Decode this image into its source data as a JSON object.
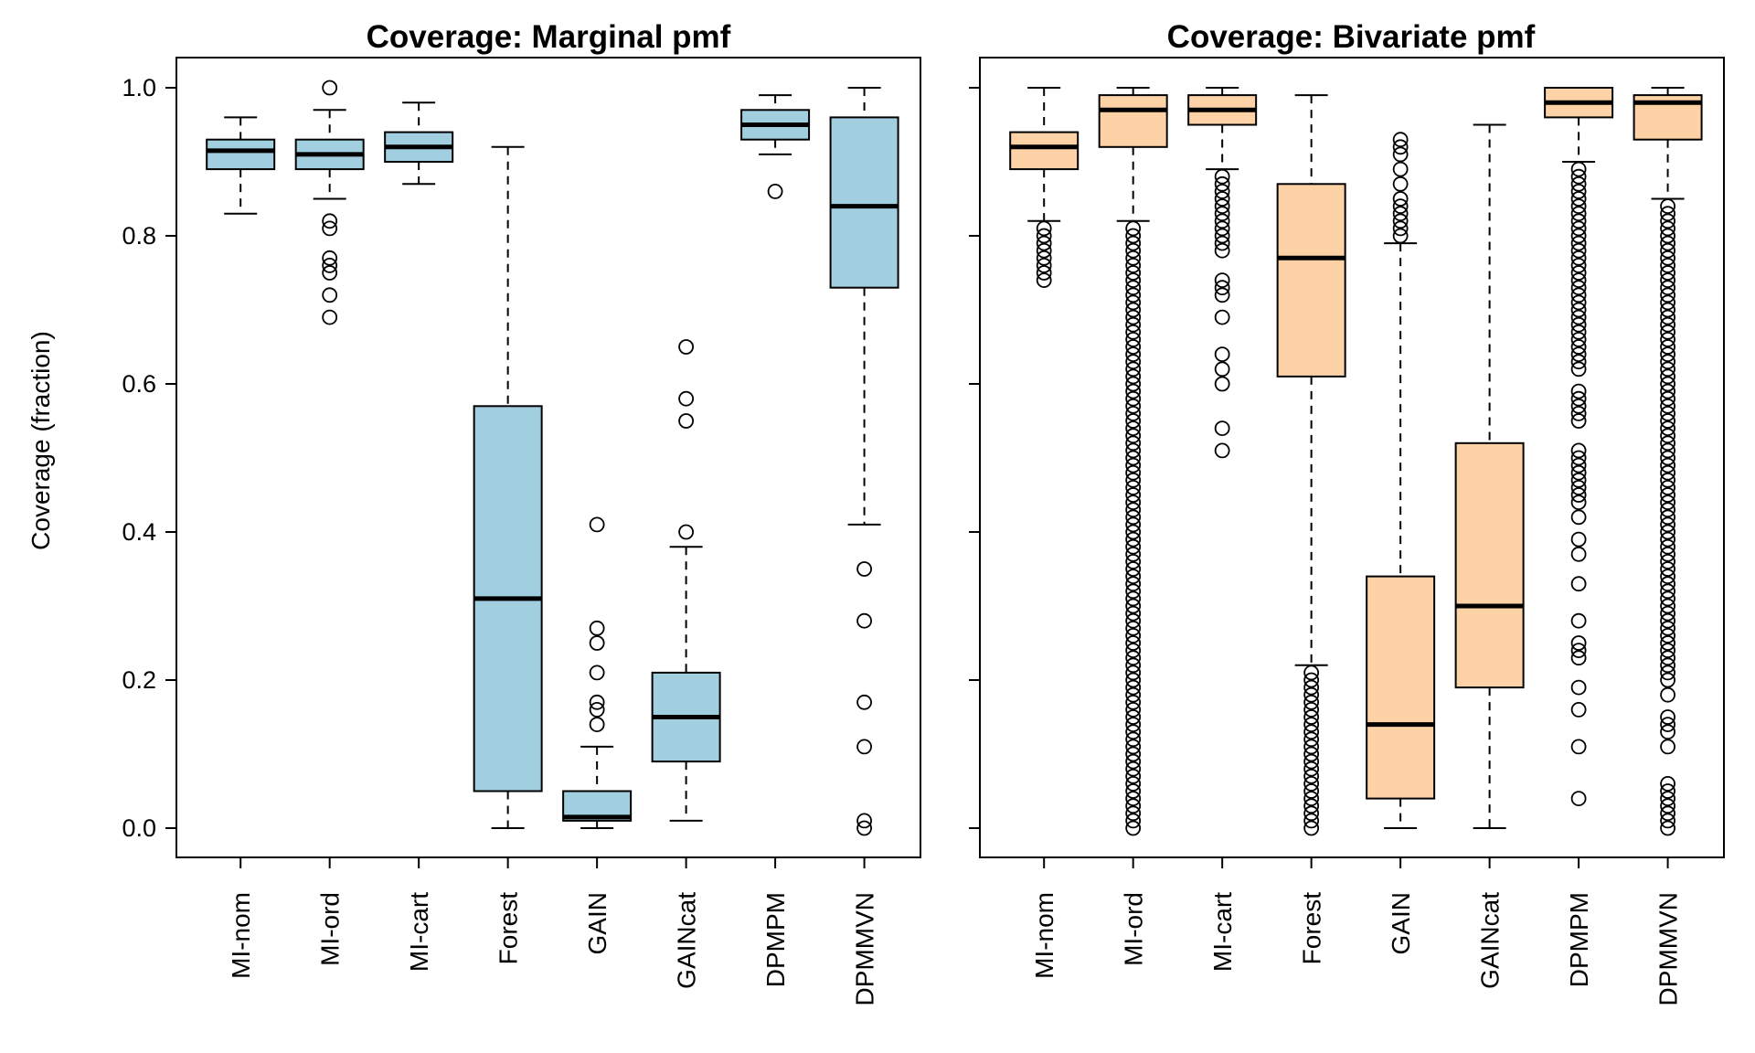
{
  "chart_data": [
    {
      "type": "box",
      "title": "Coverage: Marginal pmf",
      "ylabel": "Coverage (fraction)",
      "ylim": [
        0,
        1
      ],
      "yticks": [
        "0.0",
        "0.2",
        "0.4",
        "0.6",
        "0.8",
        "1.0"
      ],
      "show_ytick_labels": true,
      "fill": "#a1cfdf",
      "categories": [
        "MI-nom",
        "MI-ord",
        "MI-cart",
        "Forest",
        "GAIN",
        "GAINcat",
        "DPMPM",
        "DPMMVN"
      ],
      "boxes": [
        {
          "low": 0.83,
          "q1": 0.89,
          "median": 0.915,
          "q3": 0.93,
          "high": 0.96,
          "outliers": []
        },
        {
          "low": 0.85,
          "q1": 0.89,
          "median": 0.91,
          "q3": 0.93,
          "high": 0.97,
          "outliers": [
            1.0,
            0.82,
            0.81,
            0.77,
            0.76,
            0.75,
            0.72,
            0.69
          ]
        },
        {
          "low": 0.87,
          "q1": 0.9,
          "median": 0.92,
          "q3": 0.94,
          "high": 0.98,
          "outliers": []
        },
        {
          "low": 0.0,
          "q1": 0.05,
          "median": 0.31,
          "q3": 0.57,
          "high": 0.92,
          "outliers": []
        },
        {
          "low": 0.0,
          "q1": 0.01,
          "median": 0.015,
          "q3": 0.05,
          "high": 0.11,
          "outliers": [
            0.41,
            0.27,
            0.25,
            0.21,
            0.17,
            0.16,
            0.14
          ]
        },
        {
          "low": 0.01,
          "q1": 0.09,
          "median": 0.15,
          "q3": 0.21,
          "high": 0.38,
          "outliers": [
            0.65,
            0.58,
            0.55,
            0.4
          ]
        },
        {
          "low": 0.91,
          "q1": 0.93,
          "median": 0.95,
          "q3": 0.97,
          "high": 0.99,
          "outliers": [
            0.86
          ]
        },
        {
          "low": 0.41,
          "q1": 0.73,
          "median": 0.84,
          "q3": 0.96,
          "high": 1.0,
          "outliers": [
            0.35,
            0.28,
            0.17,
            0.11,
            0.01,
            0.0
          ]
        }
      ]
    },
    {
      "type": "box",
      "title": "Coverage: Bivariate pmf",
      "ylabel": "",
      "ylim": [
        0,
        1
      ],
      "yticks": [
        "0.0",
        "0.2",
        "0.4",
        "0.6",
        "0.8",
        "1.0"
      ],
      "show_ytick_labels": false,
      "fill": "#fcd2a6",
      "categories": [
        "MI-nom",
        "MI-ord",
        "MI-cart",
        "Forest",
        "GAIN",
        "GAINcat",
        "DPMPM",
        "DPMMVN"
      ],
      "boxes": [
        {
          "low": 0.82,
          "q1": 0.89,
          "median": 0.92,
          "q3": 0.94,
          "high": 1.0,
          "outliers": [
            0.81,
            0.8,
            0.79,
            0.78,
            0.77,
            0.76,
            0.75,
            0.74
          ]
        },
        {
          "low": 0.82,
          "q1": 0.92,
          "median": 0.97,
          "q3": 0.99,
          "high": 1.0,
          "outliers": [
            0.81,
            0.8,
            0.79,
            0.78,
            0.77,
            0.76,
            0.75,
            0.74,
            0.73,
            0.72,
            0.71,
            0.7,
            0.69,
            0.68,
            0.67,
            0.66,
            0.65,
            0.64,
            0.63,
            0.62,
            0.61,
            0.6,
            0.59,
            0.58,
            0.57,
            0.56,
            0.55,
            0.54,
            0.53,
            0.52,
            0.51,
            0.5,
            0.49,
            0.48,
            0.47,
            0.46,
            0.45,
            0.44,
            0.43,
            0.42,
            0.41,
            0.4,
            0.39,
            0.38,
            0.37,
            0.36,
            0.35,
            0.34,
            0.33,
            0.32,
            0.31,
            0.3,
            0.29,
            0.28,
            0.27,
            0.26,
            0.25,
            0.24,
            0.23,
            0.22,
            0.21,
            0.2,
            0.19,
            0.18,
            0.17,
            0.16,
            0.15,
            0.14,
            0.13,
            0.12,
            0.11,
            0.1,
            0.09,
            0.08,
            0.07,
            0.06,
            0.05,
            0.04,
            0.03,
            0.02,
            0.01,
            0.0
          ]
        },
        {
          "low": 0.89,
          "q1": 0.95,
          "median": 0.97,
          "q3": 0.99,
          "high": 1.0,
          "outliers": [
            0.88,
            0.87,
            0.86,
            0.85,
            0.84,
            0.83,
            0.82,
            0.81,
            0.8,
            0.79,
            0.78,
            0.74,
            0.73,
            0.72,
            0.69,
            0.64,
            0.62,
            0.6,
            0.54,
            0.51
          ]
        },
        {
          "low": 0.22,
          "q1": 0.61,
          "median": 0.77,
          "q3": 0.87,
          "high": 0.99,
          "outliers": [
            0.21,
            0.2,
            0.19,
            0.18,
            0.17,
            0.16,
            0.15,
            0.14,
            0.13,
            0.12,
            0.11,
            0.1,
            0.09,
            0.08,
            0.07,
            0.06,
            0.05,
            0.04,
            0.03,
            0.02,
            0.01,
            0.0
          ]
        },
        {
          "low": 0.0,
          "q1": 0.04,
          "median": 0.14,
          "q3": 0.34,
          "high": 0.79,
          "outliers": [
            0.93,
            0.92,
            0.91,
            0.89,
            0.87,
            0.85,
            0.84,
            0.83,
            0.82,
            0.81,
            0.8
          ]
        },
        {
          "low": 0.0,
          "q1": 0.19,
          "median": 0.3,
          "q3": 0.52,
          "high": 0.95,
          "outliers": []
        },
        {
          "low": 0.9,
          "q1": 0.96,
          "median": 0.98,
          "q3": 1.0,
          "high": 1.0,
          "outliers": [
            0.89,
            0.88,
            0.87,
            0.86,
            0.85,
            0.84,
            0.83,
            0.82,
            0.81,
            0.8,
            0.79,
            0.78,
            0.77,
            0.76,
            0.75,
            0.74,
            0.73,
            0.72,
            0.71,
            0.7,
            0.69,
            0.68,
            0.67,
            0.66,
            0.65,
            0.64,
            0.63,
            0.62,
            0.59,
            0.58,
            0.57,
            0.56,
            0.55,
            0.51,
            0.5,
            0.49,
            0.48,
            0.47,
            0.46,
            0.45,
            0.44,
            0.42,
            0.39,
            0.37,
            0.33,
            0.28,
            0.25,
            0.24,
            0.23,
            0.19,
            0.16,
            0.11,
            0.04
          ]
        },
        {
          "low": 0.85,
          "q1": 0.93,
          "median": 0.98,
          "q3": 0.99,
          "high": 1.0,
          "outliers": [
            0.84,
            0.83,
            0.82,
            0.81,
            0.8,
            0.79,
            0.78,
            0.77,
            0.76,
            0.75,
            0.74,
            0.73,
            0.72,
            0.71,
            0.7,
            0.69,
            0.68,
            0.67,
            0.66,
            0.65,
            0.64,
            0.63,
            0.62,
            0.61,
            0.6,
            0.59,
            0.58,
            0.57,
            0.56,
            0.55,
            0.54,
            0.53,
            0.52,
            0.51,
            0.5,
            0.49,
            0.48,
            0.47,
            0.46,
            0.45,
            0.44,
            0.43,
            0.42,
            0.41,
            0.4,
            0.39,
            0.38,
            0.37,
            0.36,
            0.35,
            0.34,
            0.33,
            0.32,
            0.31,
            0.3,
            0.29,
            0.28,
            0.27,
            0.26,
            0.25,
            0.24,
            0.23,
            0.22,
            0.21,
            0.2,
            0.18,
            0.15,
            0.14,
            0.13,
            0.11,
            0.06,
            0.05,
            0.04,
            0.03,
            0.02,
            0.01,
            0.0
          ]
        }
      ]
    }
  ]
}
